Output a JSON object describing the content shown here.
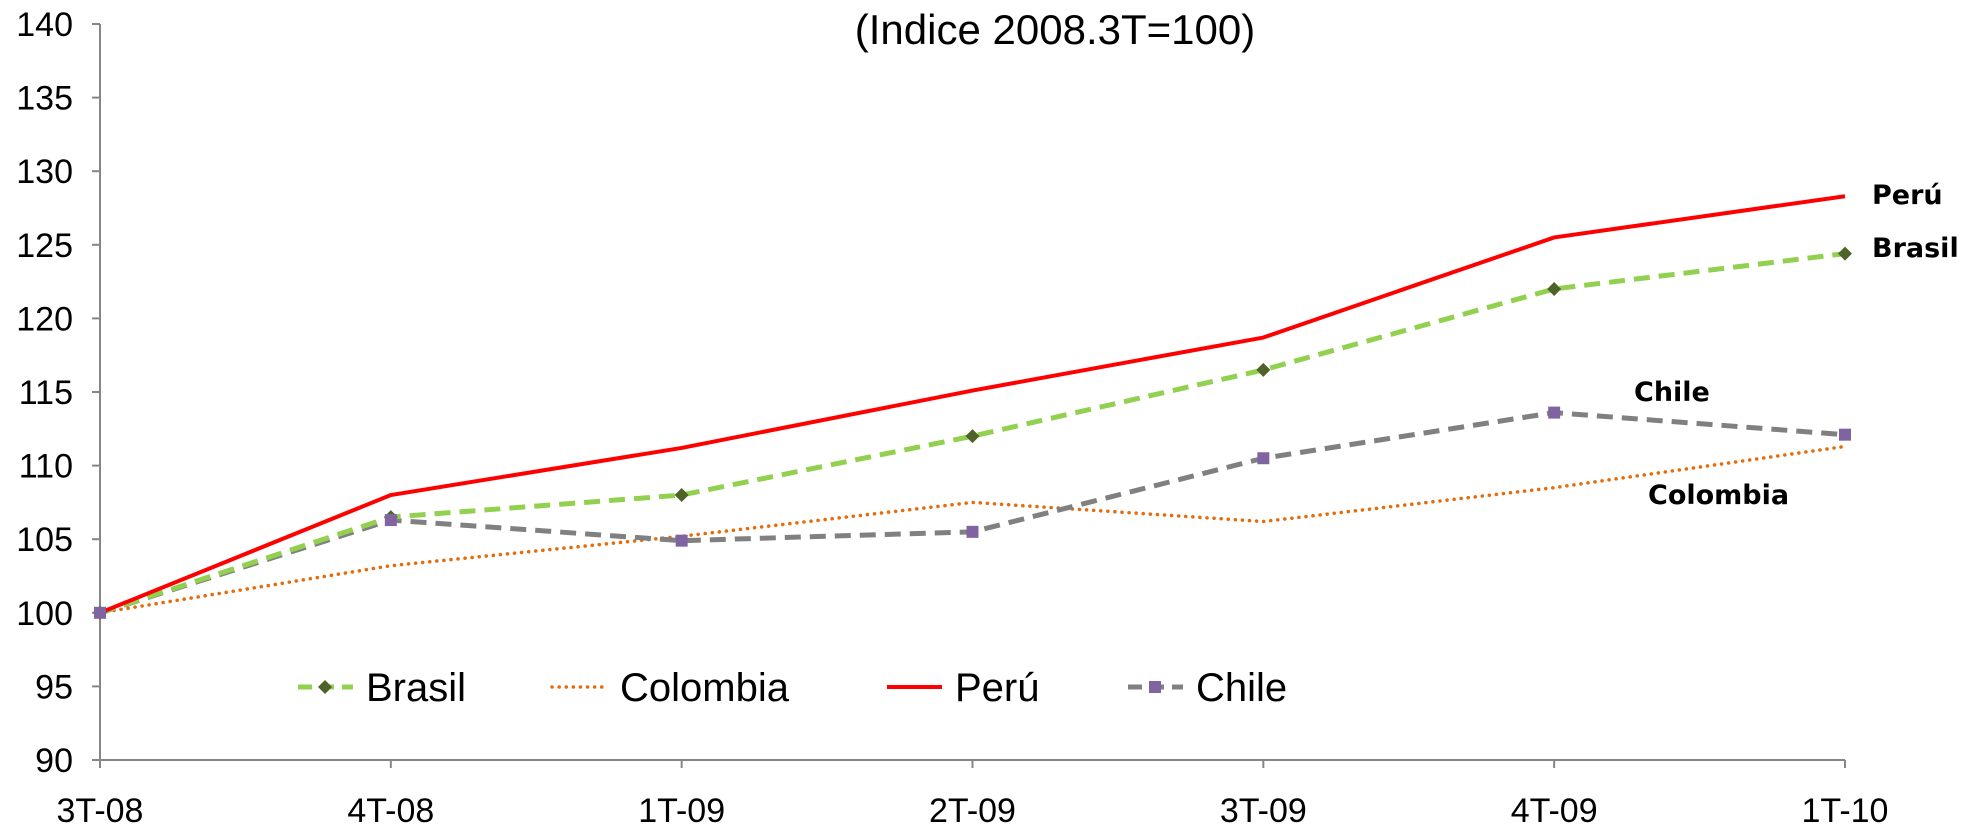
{
  "chart_data": {
    "type": "line",
    "title": "",
    "subtitle": "(Indice 2008.3T=100)",
    "xlabel": "",
    "ylabel": "",
    "categories": [
      "3T-08",
      "4T-08",
      "1T-09",
      "2T-09",
      "3T-09",
      "4T-09",
      "1T-10"
    ],
    "ylim": [
      90,
      140
    ],
    "yticks": [
      90,
      95,
      100,
      105,
      110,
      115,
      120,
      125,
      130,
      135,
      140
    ],
    "grid": false,
    "legend_position": "bottom-left, inside plot",
    "series": [
      {
        "name": "Brasil",
        "values": [
          100,
          106.5,
          108.0,
          112.0,
          116.5,
          122.0,
          124.4
        ],
        "color": "#92D050",
        "style": "dashed",
        "marker": "diamond",
        "marker_color": "#4F6228"
      },
      {
        "name": "Colombia",
        "values": [
          100,
          103.2,
          105.2,
          107.5,
          106.2,
          108.5,
          111.3
        ],
        "color": "#E46C0A",
        "style": "dotted",
        "marker": "none"
      },
      {
        "name": "Perú",
        "values": [
          100,
          108.0,
          111.2,
          115.1,
          118.7,
          125.5,
          128.3
        ],
        "color": "#FF0000",
        "style": "solid",
        "marker": "none"
      },
      {
        "name": "Chile",
        "values": [
          100,
          106.3,
          104.9,
          105.5,
          110.5,
          113.6,
          112.1
        ],
        "color": "#808080",
        "style": "dashed",
        "marker": "square",
        "marker_color": "#8064A2"
      }
    ],
    "annotations": [
      {
        "text": "Perú",
        "series": "Perú"
      },
      {
        "text": "Brasil",
        "series": "Brasil"
      },
      {
        "text": "Chile",
        "series": "Chile"
      },
      {
        "text": "Colombia",
        "series": "Colombia"
      }
    ]
  }
}
